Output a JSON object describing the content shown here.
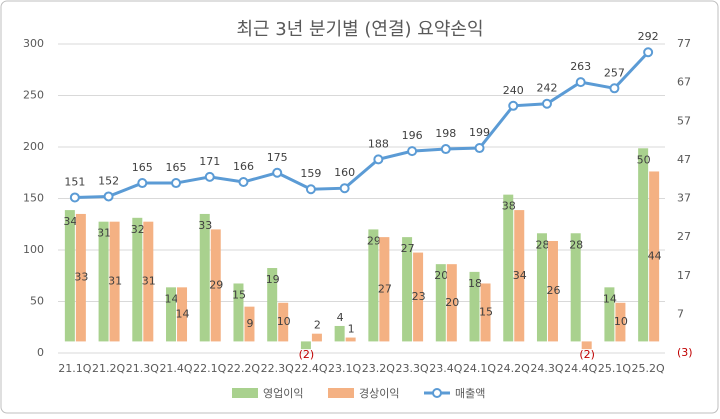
{
  "chart_data": {
    "type": "bar-line",
    "title": "최근 3년 분기별 (연결) 요약손익",
    "categories": [
      "21.1Q",
      "21.2Q",
      "21.3Q",
      "21.4Q",
      "22.1Q",
      "22.2Q",
      "22.3Q",
      "22.4Q",
      "23.1Q",
      "23.2Q",
      "23.3Q",
      "23.4Q",
      "24.1Q",
      "24.2Q",
      "24.3Q",
      "24.4Q",
      "25.1Q",
      "25.2Q"
    ],
    "series": [
      {
        "name": "영업이익",
        "type": "bar",
        "axis": "y2",
        "color": "#a9d18e",
        "values": [
          34,
          31,
          32,
          14,
          33,
          15,
          19,
          -2,
          4,
          29,
          27,
          20,
          18,
          38,
          28,
          28,
          14,
          50
        ],
        "value_labels": [
          "34",
          "31",
          "32",
          "14",
          "33",
          "15",
          "19",
          "(2)",
          "4",
          "29",
          "27",
          "20",
          "18",
          "38",
          "28",
          "28",
          "14",
          "50"
        ]
      },
      {
        "name": "경상이익",
        "type": "bar",
        "axis": "y2",
        "color": "#f4b183",
        "values": [
          33,
          31,
          31,
          14,
          29,
          9,
          10,
          2,
          1,
          27,
          23,
          20,
          15,
          34,
          26,
          -2,
          10,
          44
        ],
        "value_labels": [
          "33",
          "31",
          "31",
          "14",
          "29",
          "9",
          "10",
          "2",
          "1",
          "27",
          "23",
          "20",
          "15",
          "34",
          "26",
          "(2)",
          "10",
          "44"
        ]
      },
      {
        "name": "매출액",
        "type": "line",
        "color": "#5b9bd5",
        "values": [
          151,
          152,
          165,
          165,
          171,
          166,
          175,
          159,
          160,
          188,
          196,
          198,
          199,
          240,
          242,
          263,
          257,
          292
        ]
      }
    ],
    "ylim": [
      0,
      300
    ],
    "yticks": [
      0,
      50,
      100,
      150,
      200,
      250,
      300
    ],
    "y2lim": [
      -3,
      77
    ],
    "y2ticks": [
      {
        "value": -3,
        "label": "(3)"
      },
      7,
      17,
      27,
      37,
      47,
      57,
      67,
      77
    ],
    "grid": true
  }
}
